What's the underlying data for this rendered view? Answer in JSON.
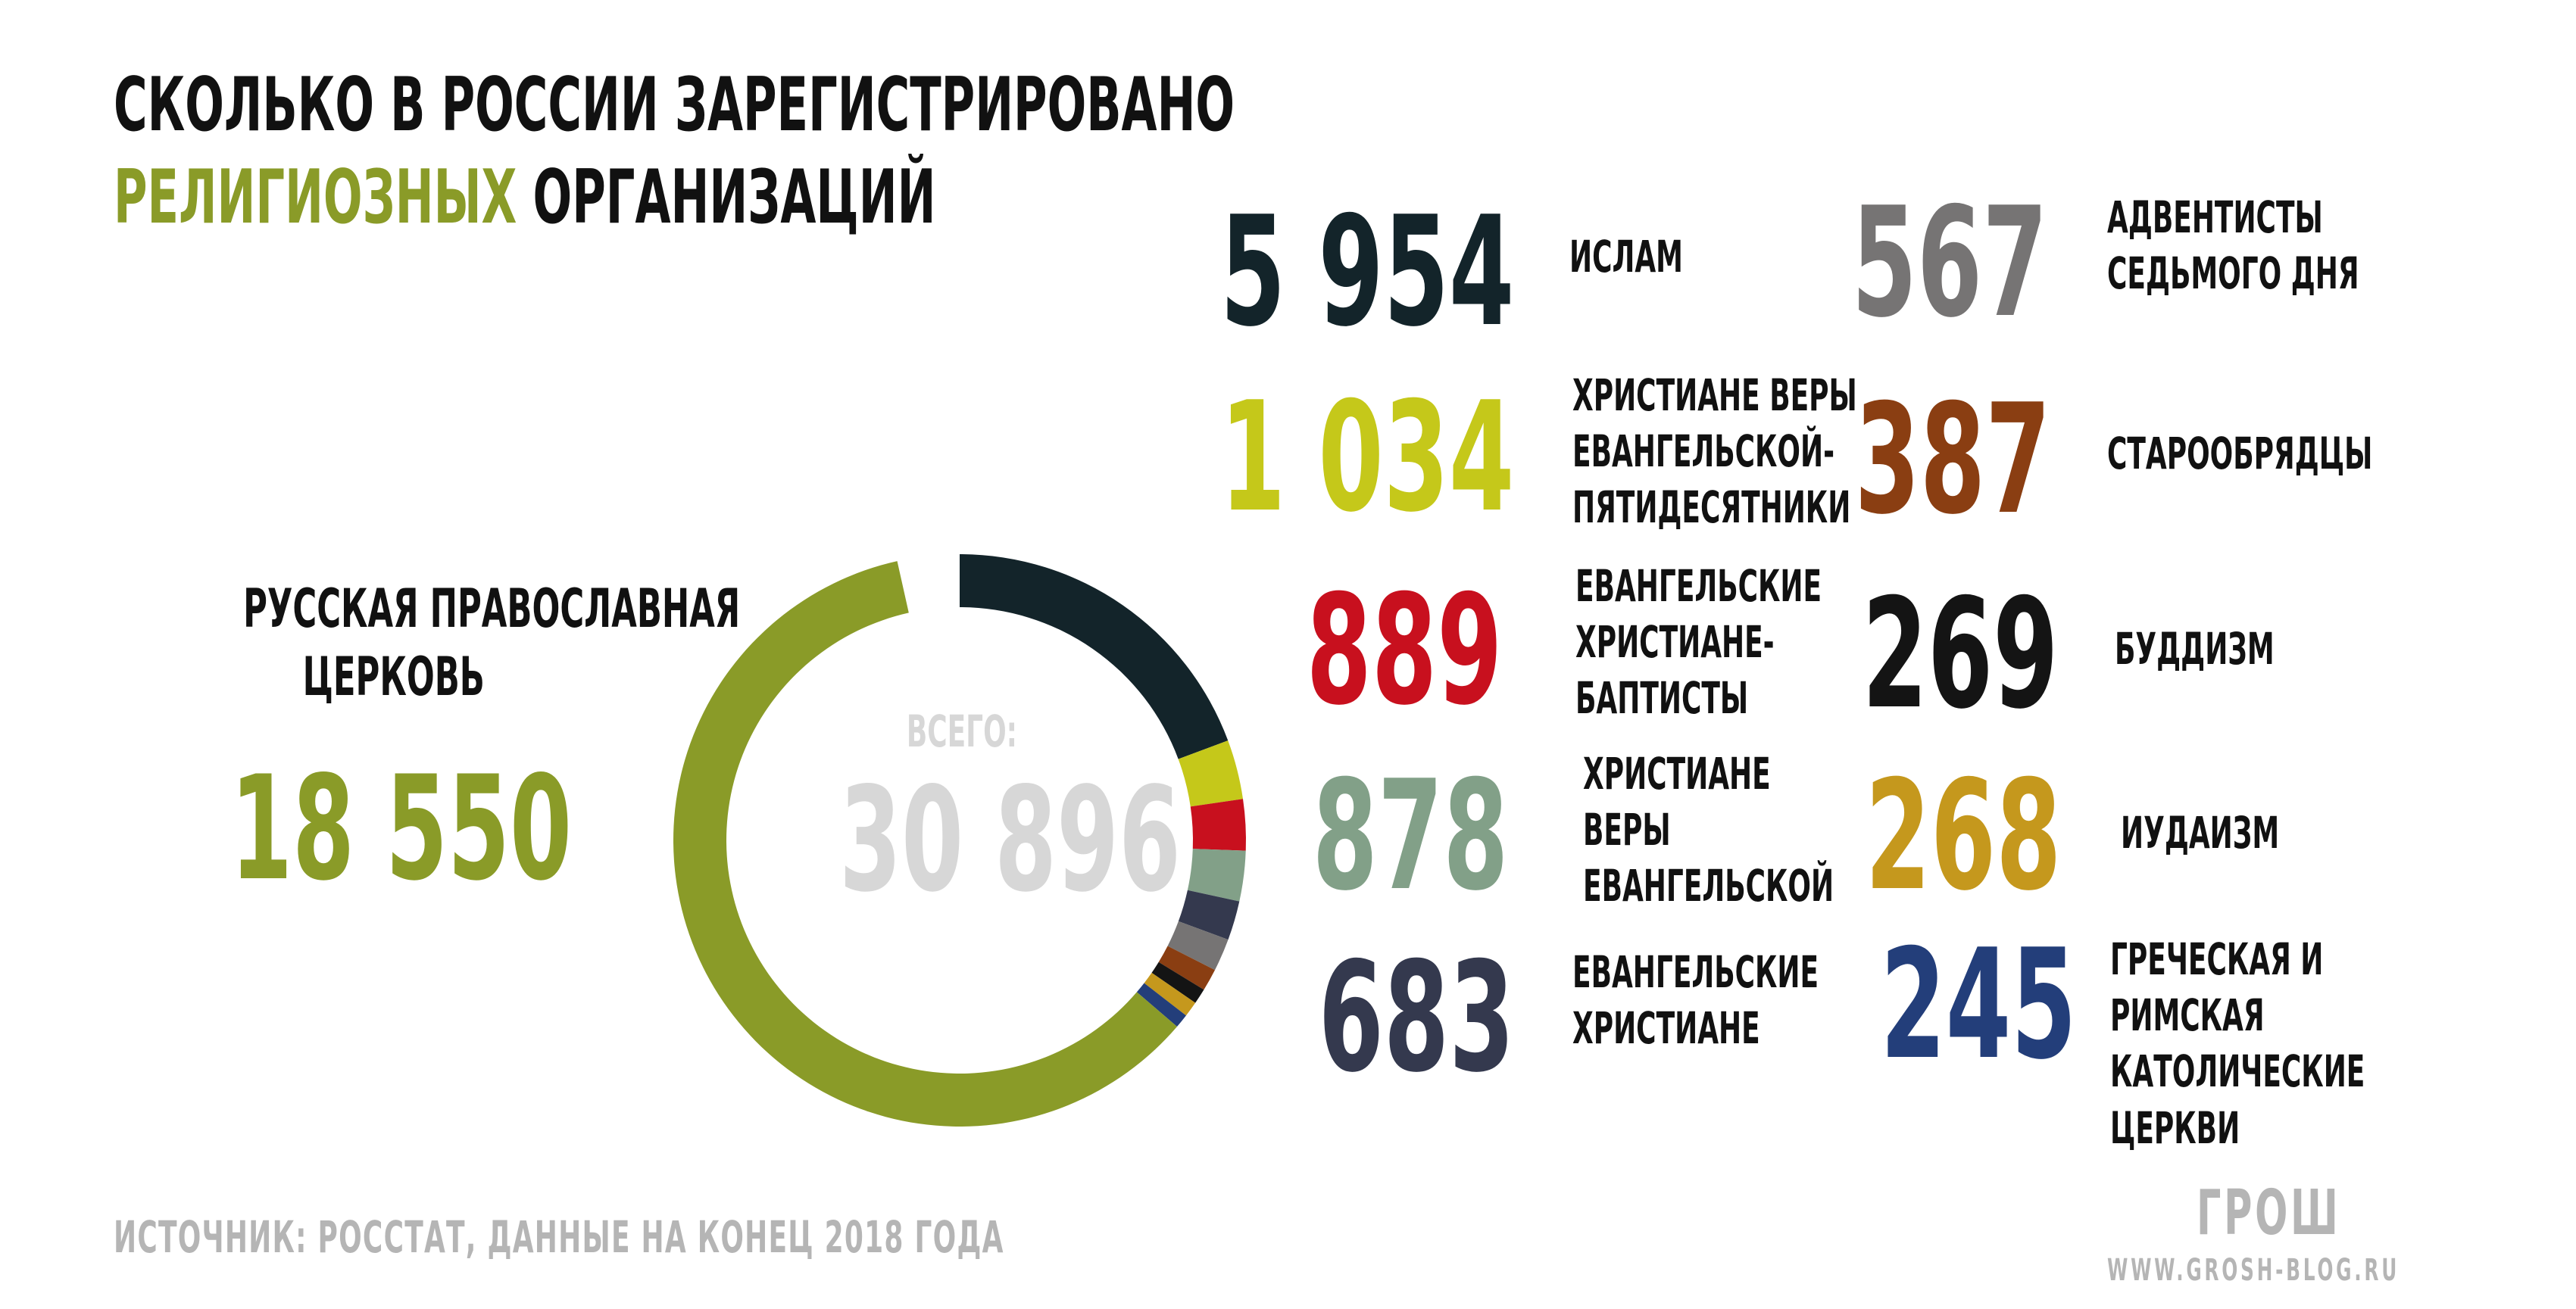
{
  "title": {
    "line1": "СКОЛЬКО В РОССИИ ЗАРЕГИСТРИРОВАНО",
    "line2_highlight": "РЕЛИГИОЗНЫХ",
    "line2_rest": " ОРГАНИЗАЦИЙ"
  },
  "colors": {
    "highlight": "#8a9b28",
    "total": "#d7d7d7",
    "source": "#b5b5b5"
  },
  "featured": {
    "label_line1": "РУССКАЯ ПРАВОСЛАВНАЯ",
    "label_line2": "ЦЕРКОВЬ",
    "value": "18 550"
  },
  "total": {
    "label": "ВСЕГО:",
    "value": "30 896"
  },
  "left_list": [
    {
      "value": "5 954",
      "lines": [
        "ИСЛАМ"
      ],
      "color": "#13242a"
    },
    {
      "value": "1 034",
      "lines": [
        "ХРИСТИАНЕ ВЕРЫ",
        "ЕВАНГЕЛЬСКОЙ-",
        "ПЯТИДЕСЯТНИКИ"
      ],
      "color": "#c5c81a"
    },
    {
      "value": "889",
      "lines": [
        "ЕВАНГЕЛЬСКИЕ",
        "ХРИСТИАНЕ-",
        "БАПТИСТЫ"
      ],
      "color": "#c8101e"
    },
    {
      "value": "878",
      "lines": [
        "ХРИСТИАНЕ",
        "ВЕРЫ",
        "ЕВАНГЕЛЬСКОЙ"
      ],
      "color": "#82a088"
    },
    {
      "value": "683",
      "lines": [
        "ЕВАНГЕЛЬСКИЕ",
        "ХРИСТИАНЕ"
      ],
      "color": "#34394e"
    }
  ],
  "right_list": [
    {
      "value": "567",
      "lines": [
        "АДВЕНТИСТЫ",
        "СЕДЬМОГО ДНЯ"
      ],
      "color": "#767474"
    },
    {
      "value": "387",
      "lines": [
        "СТАРООБРЯДЦЫ"
      ],
      "color": "#8a3e12"
    },
    {
      "value": "269",
      "lines": [
        "БУДДИЗМ"
      ],
      "color": "#141414"
    },
    {
      "value": "268",
      "lines": [
        "ИУДАИЗМ"
      ],
      "color": "#c5981d"
    },
    {
      "value": "245",
      "lines": [
        "ГРЕЧЕСКАЯ И",
        "РИМСКАЯ",
        "КАТОЛИЧЕСКИЕ",
        "ЦЕРКВИ"
      ],
      "color": "#233e7a"
    }
  ],
  "footer": {
    "source": "ИСТОЧНИК: РОССТАТ, ДАННЫЕ НА КОНЕЦ 2018 ГОДА",
    "logo": "ГРОШ",
    "site": "WWW.GROSH-BLOG.RU"
  },
  "chart_data": {
    "type": "pie",
    "variant": "donut",
    "total": 30896,
    "slices": [
      {
        "label": "ИСЛАМ",
        "value": 5954,
        "color": "#13242a"
      },
      {
        "label": "ХРИСТИАНЕ ВЕРЫ ЕВАНГЕЛЬСКОЙ-ПЯТИДЕСЯТНИКИ",
        "value": 1034,
        "color": "#c5c81a"
      },
      {
        "label": "ЕВАНГЕЛЬСКИЕ ХРИСТИАНЕ-БАПТИСТЫ",
        "value": 889,
        "color": "#c8101e"
      },
      {
        "label": "ХРИСТИАНЕ ВЕРЫ ЕВАНГЕЛЬСКОЙ",
        "value": 878,
        "color": "#82a088"
      },
      {
        "label": "ЕВАНГЕЛЬСКИЕ ХРИСТИАНЕ",
        "value": 683,
        "color": "#34394e"
      },
      {
        "label": "АДВЕНТИСТЫ СЕДЬМОГО ДНЯ",
        "value": 567,
        "color": "#767474"
      },
      {
        "label": "СТАРООБРЯДЦЫ",
        "value": 387,
        "color": "#8a3e12"
      },
      {
        "label": "БУДДИЗМ",
        "value": 269,
        "color": "#141414"
      },
      {
        "label": "ИУДАИЗМ",
        "value": 268,
        "color": "#c5981d"
      },
      {
        "label": "ГРЕЧЕСКАЯ И РИМСКАЯ КАТОЛИЧЕСКИЕ ЦЕРКВИ",
        "value": 245,
        "color": "#233e7a"
      },
      {
        "label": "РУССКАЯ ПРАВОСЛАВНАЯ ЦЕРКОВЬ",
        "value": 18550,
        "color": "#8a9b28"
      }
    ]
  }
}
